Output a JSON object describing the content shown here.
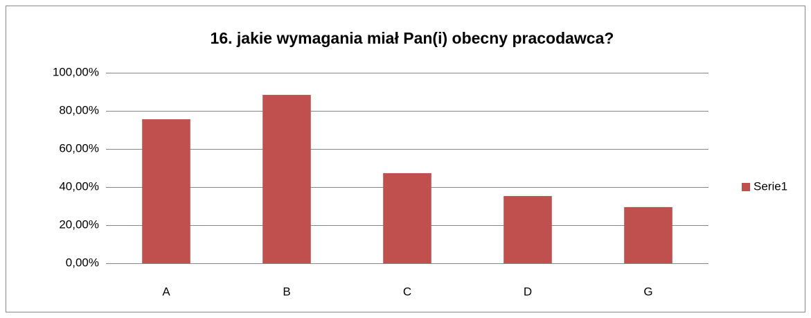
{
  "chart_data": {
    "type": "bar",
    "title": "16. jakie wymagania miał Pan(i) obecny pracodawca?",
    "categories": [
      "A",
      "B",
      "C",
      "D",
      "G"
    ],
    "series": [
      {
        "name": "Serie1",
        "color": "#c0504d",
        "values": [
          75.6,
          88.4,
          47.3,
          35.3,
          29.5
        ]
      }
    ],
    "ylim": [
      0,
      100
    ],
    "yticks": [
      {
        "value": 0,
        "label": "0,00%"
      },
      {
        "value": 20,
        "label": "20,00%"
      },
      {
        "value": 40,
        "label": "40,00%"
      },
      {
        "value": 60,
        "label": "60,00%"
      },
      {
        "value": 80,
        "label": "80,00%"
      },
      {
        "value": 100,
        "label": "100,00%"
      }
    ],
    "grid": true,
    "legend": "right"
  }
}
